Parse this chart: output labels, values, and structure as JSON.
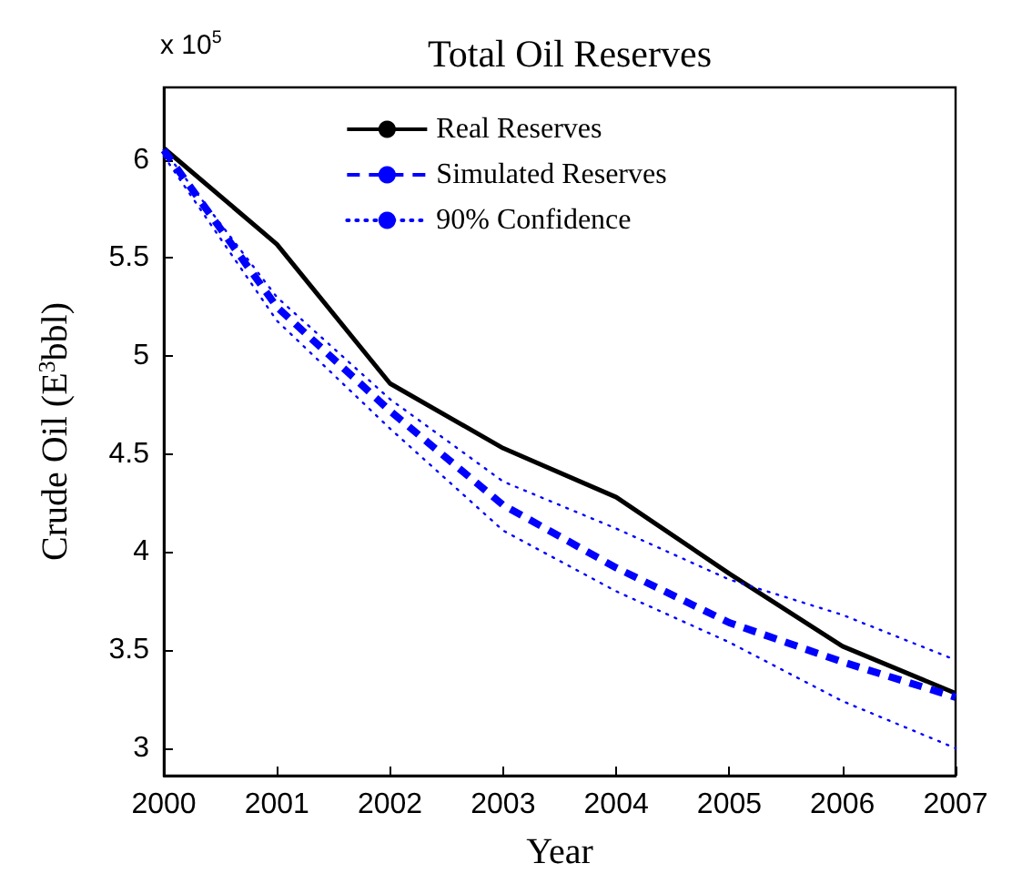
{
  "chart_data": {
    "type": "line",
    "title": "Total Oil Reserves",
    "xlabel": "Year",
    "ylabel": "Crude Oil (E$^{3}$bbl)",
    "annotations": [
      "x 10$^{5}$"
    ],
    "x": [
      2000,
      2001,
      2002,
      2003,
      2004,
      2005,
      2006,
      2007
    ],
    "series": [
      {
        "name": "Real Reserves",
        "color": "#000000",
        "line_style": "solid",
        "values": [
          6.06,
          5.57,
          4.86,
          4.53,
          4.28,
          3.89,
          3.52,
          3.28
        ]
      },
      {
        "name": "Simulated Reserves",
        "color": "#0000ff",
        "line_style": "dashed",
        "values": [
          6.05,
          5.25,
          4.72,
          4.24,
          3.92,
          3.64,
          3.44,
          3.26
        ]
      },
      {
        "name": "90% Confidence",
        "color": "#0000ff",
        "line_style": "dotted",
        "values": [
          6.05,
          5.3,
          4.78,
          4.36,
          4.12,
          3.86,
          3.68,
          3.45
        ]
      },
      {
        "color": "#0000ff",
        "line_style": "dotted",
        "values": [
          6.02,
          5.18,
          4.63,
          4.11,
          3.8,
          3.54,
          3.24,
          3.0
        ]
      }
    ],
    "xlim": [
      2000,
      2007
    ],
    "xticks": [
      2000,
      2001,
      2002,
      2003,
      2004,
      2005,
      2006,
      2007
    ],
    "ylim": [
      2.86,
      6.37
    ],
    "yticks": [
      3,
      3.5,
      4,
      4.5,
      5,
      5.5,
      6
    ],
    "grid": false,
    "legend": "top",
    "marker": "none"
  }
}
